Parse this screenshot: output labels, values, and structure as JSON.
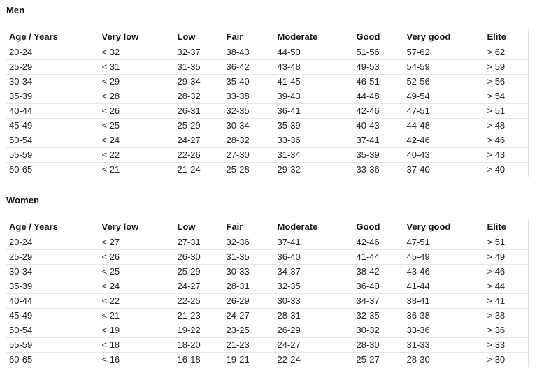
{
  "sections": [
    {
      "title": "Men",
      "columns": [
        "Age / Years",
        "Very low",
        "Low",
        "Fair",
        "Moderate",
        "Good",
        "Very good",
        "Elite"
      ],
      "rows": [
        [
          "20-24",
          "< 32",
          "32-37",
          "38-43",
          "44-50",
          "51-56",
          "57-62",
          "> 62"
        ],
        [
          "25-29",
          "< 31",
          "31-35",
          "36-42",
          "43-48",
          "49-53",
          "54-59",
          "> 59"
        ],
        [
          "30-34",
          "< 29",
          "29-34",
          "35-40",
          "41-45",
          "46-51",
          "52-56",
          "> 56"
        ],
        [
          "35-39",
          "< 28",
          "28-32",
          "33-38",
          "39-43",
          "44-48",
          "49-54",
          "> 54"
        ],
        [
          "40-44",
          "< 26",
          "26-31",
          "32-35",
          "36-41",
          "42-46",
          "47-51",
          "> 51"
        ],
        [
          "45-49",
          "< 25",
          "25-29",
          "30-34",
          "35-39",
          "40-43",
          "44-48",
          "> 48"
        ],
        [
          "50-54",
          "< 24",
          "24-27",
          "28-32",
          "33-36",
          "37-41",
          "42-46",
          "> 46"
        ],
        [
          "55-59",
          "< 22",
          "22-26",
          "27-30",
          "31-34",
          "35-39",
          "40-43",
          "> 43"
        ],
        [
          "60-65",
          "< 21",
          "21-24",
          "25-28",
          "29-32",
          "33-36",
          "37-40",
          "> 40"
        ]
      ]
    },
    {
      "title": "Women",
      "columns": [
        "Age / Years",
        "Very low",
        "Low",
        "Fair",
        "Moderate",
        "Good",
        "Very good",
        "Elite"
      ],
      "rows": [
        [
          "20-24",
          "< 27",
          "27-31",
          "32-36",
          "37-41",
          "42-46",
          "47-51",
          "> 51"
        ],
        [
          "25-29",
          "< 26",
          "26-30",
          "31-35",
          "36-40",
          "41-44",
          "45-49",
          "> 49"
        ],
        [
          "30-34",
          "< 25",
          "25-29",
          "30-33",
          "34-37",
          "38-42",
          "43-46",
          "> 46"
        ],
        [
          "35-39",
          "< 24",
          "24-27",
          "28-31",
          "32-35",
          "36-40",
          "41-44",
          "> 44"
        ],
        [
          "40-44",
          "< 22",
          "22-25",
          "26-29",
          "30-33",
          "34-37",
          "38-41",
          "> 41"
        ],
        [
          "45-49",
          "< 21",
          "21-23",
          "24-27",
          "28-31",
          "32-35",
          "36-38",
          "> 38"
        ],
        [
          "50-54",
          "< 19",
          "19-22",
          "23-25",
          "26-29",
          "30-32",
          "33-36",
          "> 36"
        ],
        [
          "55-59",
          "< 18",
          "18-20",
          "21-23",
          "24-27",
          "28-30",
          "31-33",
          "> 33"
        ],
        [
          "60-65",
          "< 16",
          "16-18",
          "19-21",
          "22-24",
          "25-27",
          "28-30",
          "> 30"
        ]
      ]
    }
  ],
  "colors": {
    "background": "#ffffff",
    "text": "#212121",
    "heading": "#111111",
    "row_border": "#e6e6e6",
    "outer_border": "#e0e0e0",
    "header_border": "#d6d6d6"
  }
}
